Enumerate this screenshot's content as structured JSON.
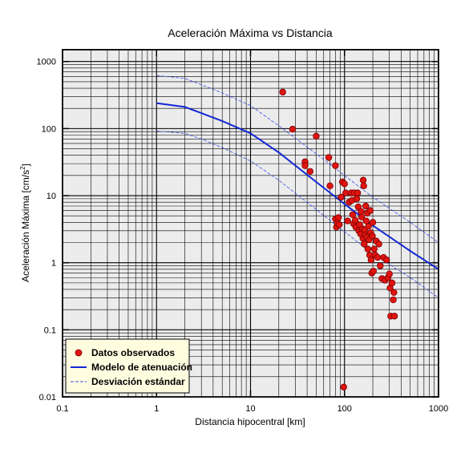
{
  "chart_data": {
    "type": "scatter",
    "title": "Aceleración Máxima vs Distancia",
    "xlabel": "Distancia hipocentral [km]",
    "ylabel_main": "Aceleración Máxima [cm/s",
    "ylabel_sup": "2",
    "ylabel_close": "]",
    "xscale": "log",
    "yscale": "log",
    "xlim": [
      0.1,
      1000
    ],
    "ylim": [
      0.01,
      1500
    ],
    "grid": true,
    "legend_position": "bottom-left",
    "x_ticks": [
      {
        "value": 0.1,
        "label": "0.1"
      },
      {
        "value": 1,
        "label": "1"
      },
      {
        "value": 10,
        "label": "10"
      },
      {
        "value": 100,
        "label": "100"
      },
      {
        "value": 1000,
        "label": "1000"
      }
    ],
    "y_ticks": [
      {
        "value": 0.01,
        "label": "0.01"
      },
      {
        "value": 0.1,
        "label": "0.1"
      },
      {
        "value": 1,
        "label": "1"
      },
      {
        "value": 10,
        "label": "10"
      },
      {
        "value": 100,
        "label": "100"
      },
      {
        "value": 1000,
        "label": "1000"
      }
    ],
    "legend": [
      {
        "label": "Datos observados",
        "kind": "marker",
        "color": "#e0140f"
      },
      {
        "label": "Modelo de atenuación",
        "kind": "line",
        "color": "#1428d6"
      },
      {
        "label": "Desviación estándar",
        "kind": "dashed",
        "color": "#3a4ee8"
      }
    ],
    "series": [
      {
        "name": "Datos observados",
        "kind": "scatter",
        "color": "#e0140f",
        "points": [
          [
            22,
            350
          ],
          [
            28,
            98
          ],
          [
            38,
            32
          ],
          [
            38,
            28
          ],
          [
            43,
            23
          ],
          [
            50,
            77
          ],
          [
            68,
            37
          ],
          [
            70,
            14
          ],
          [
            80,
            28
          ],
          [
            80,
            4.5
          ],
          [
            82,
            3.4
          ],
          [
            84,
            3.9
          ],
          [
            86,
            4.7
          ],
          [
            88,
            3.7
          ],
          [
            92,
            9.5
          ],
          [
            95,
            16
          ],
          [
            100,
            15
          ],
          [
            103,
            11
          ],
          [
            108,
            4.2
          ],
          [
            112,
            8
          ],
          [
            118,
            11
          ],
          [
            120,
            8.5
          ],
          [
            122,
            5.2
          ],
          [
            125,
            3.8
          ],
          [
            127,
            11
          ],
          [
            130,
            4.3
          ],
          [
            132,
            3.4
          ],
          [
            135,
            9
          ],
          [
            138,
            11
          ],
          [
            140,
            6.8
          ],
          [
            142,
            3
          ],
          [
            145,
            3.7
          ],
          [
            148,
            2.7
          ],
          [
            150,
            5.8
          ],
          [
            152,
            4.8
          ],
          [
            155,
            3.2
          ],
          [
            157,
            2.3
          ],
          [
            158,
            17
          ],
          [
            160,
            14
          ],
          [
            162,
            1.9
          ],
          [
            164,
            3.1
          ],
          [
            166,
            2.6
          ],
          [
            168,
            7
          ],
          [
            170,
            4.2
          ],
          [
            172,
            2.4
          ],
          [
            175,
            5.5
          ],
          [
            177,
            1.6
          ],
          [
            180,
            3.5
          ],
          [
            182,
            2.2
          ],
          [
            185,
            1.3
          ],
          [
            188,
            6
          ],
          [
            190,
            2.8
          ],
          [
            192,
            1.1
          ],
          [
            195,
            0.7
          ],
          [
            198,
            2.5
          ],
          [
            200,
            4
          ],
          [
            203,
            0.75
          ],
          [
            207,
            1.6
          ],
          [
            212,
            1.3
          ],
          [
            218,
            2.1
          ],
          [
            225,
            1.2
          ],
          [
            232,
            1.9
          ],
          [
            240,
            0.9
          ],
          [
            250,
            0.58
          ],
          [
            260,
            1.2
          ],
          [
            270,
            0.55
          ],
          [
            280,
            1.1
          ],
          [
            290,
            0.6
          ],
          [
            300,
            0.68
          ],
          [
            305,
            0.42
          ],
          [
            310,
            0.16
          ],
          [
            320,
            0.5
          ],
          [
            330,
            0.28
          ],
          [
            335,
            0.36
          ],
          [
            340,
            0.16
          ],
          [
            98,
            0.014
          ]
        ]
      },
      {
        "name": "Modelo de atenuación",
        "kind": "line",
        "color": "#1428d6",
        "points": [
          [
            1,
            240
          ],
          [
            2,
            210
          ],
          [
            3,
            170
          ],
          [
            5,
            130
          ],
          [
            10,
            85
          ],
          [
            20,
            44
          ],
          [
            50,
            16
          ],
          [
            100,
            7.5
          ],
          [
            200,
            3.6
          ],
          [
            500,
            1.5
          ],
          [
            1000,
            0.8
          ]
        ]
      },
      {
        "name": "Desviación estándar",
        "kind": "dashed",
        "color": "#3a4ee8",
        "points": [
          [
            1,
            620
          ],
          [
            2,
            560
          ],
          [
            3,
            450
          ],
          [
            5,
            340
          ],
          [
            10,
            220
          ],
          [
            20,
            110
          ],
          [
            50,
            42
          ],
          [
            100,
            20
          ],
          [
            200,
            9.5
          ],
          [
            500,
            4
          ],
          [
            1000,
            2
          ]
        ]
      },
      {
        "name": "Desviación estándar",
        "kind": "dashed",
        "color": "#3a4ee8",
        "points": [
          [
            1,
            92
          ],
          [
            2,
            85
          ],
          [
            3,
            70
          ],
          [
            5,
            52
          ],
          [
            10,
            33
          ],
          [
            20,
            17
          ],
          [
            50,
            6.2
          ],
          [
            100,
            2.9
          ],
          [
            200,
            1.35
          ],
          [
            500,
            0.6
          ],
          [
            1000,
            0.3
          ]
        ]
      }
    ]
  }
}
